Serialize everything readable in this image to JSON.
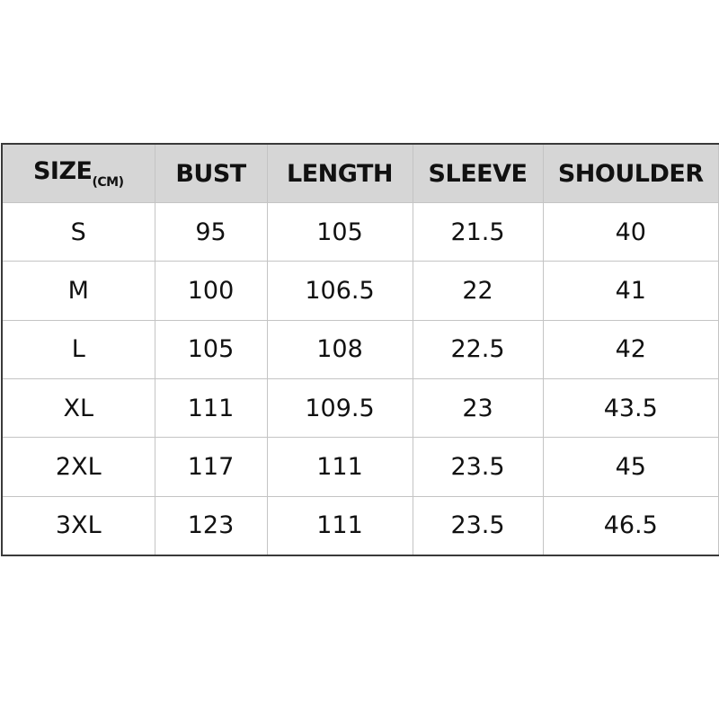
{
  "table": {
    "headers": [
      "SIZE",
      "BUST",
      "LENGTH",
      "SLEEVE",
      "SHOULDER"
    ],
    "size_unit": "(CM)",
    "rows": [
      [
        "S",
        "95",
        "105",
        "21.5",
        "40"
      ],
      [
        "M",
        "100",
        "106.5",
        "22",
        "41"
      ],
      [
        "L",
        "105",
        "108",
        "22.5",
        "42"
      ],
      [
        "XL",
        "111",
        "109.5",
        "23",
        "43.5"
      ],
      [
        "2XL",
        "117",
        "111",
        "23.5",
        "45"
      ],
      [
        "3XL",
        "123",
        "111",
        "23.5",
        "46.5"
      ]
    ]
  }
}
